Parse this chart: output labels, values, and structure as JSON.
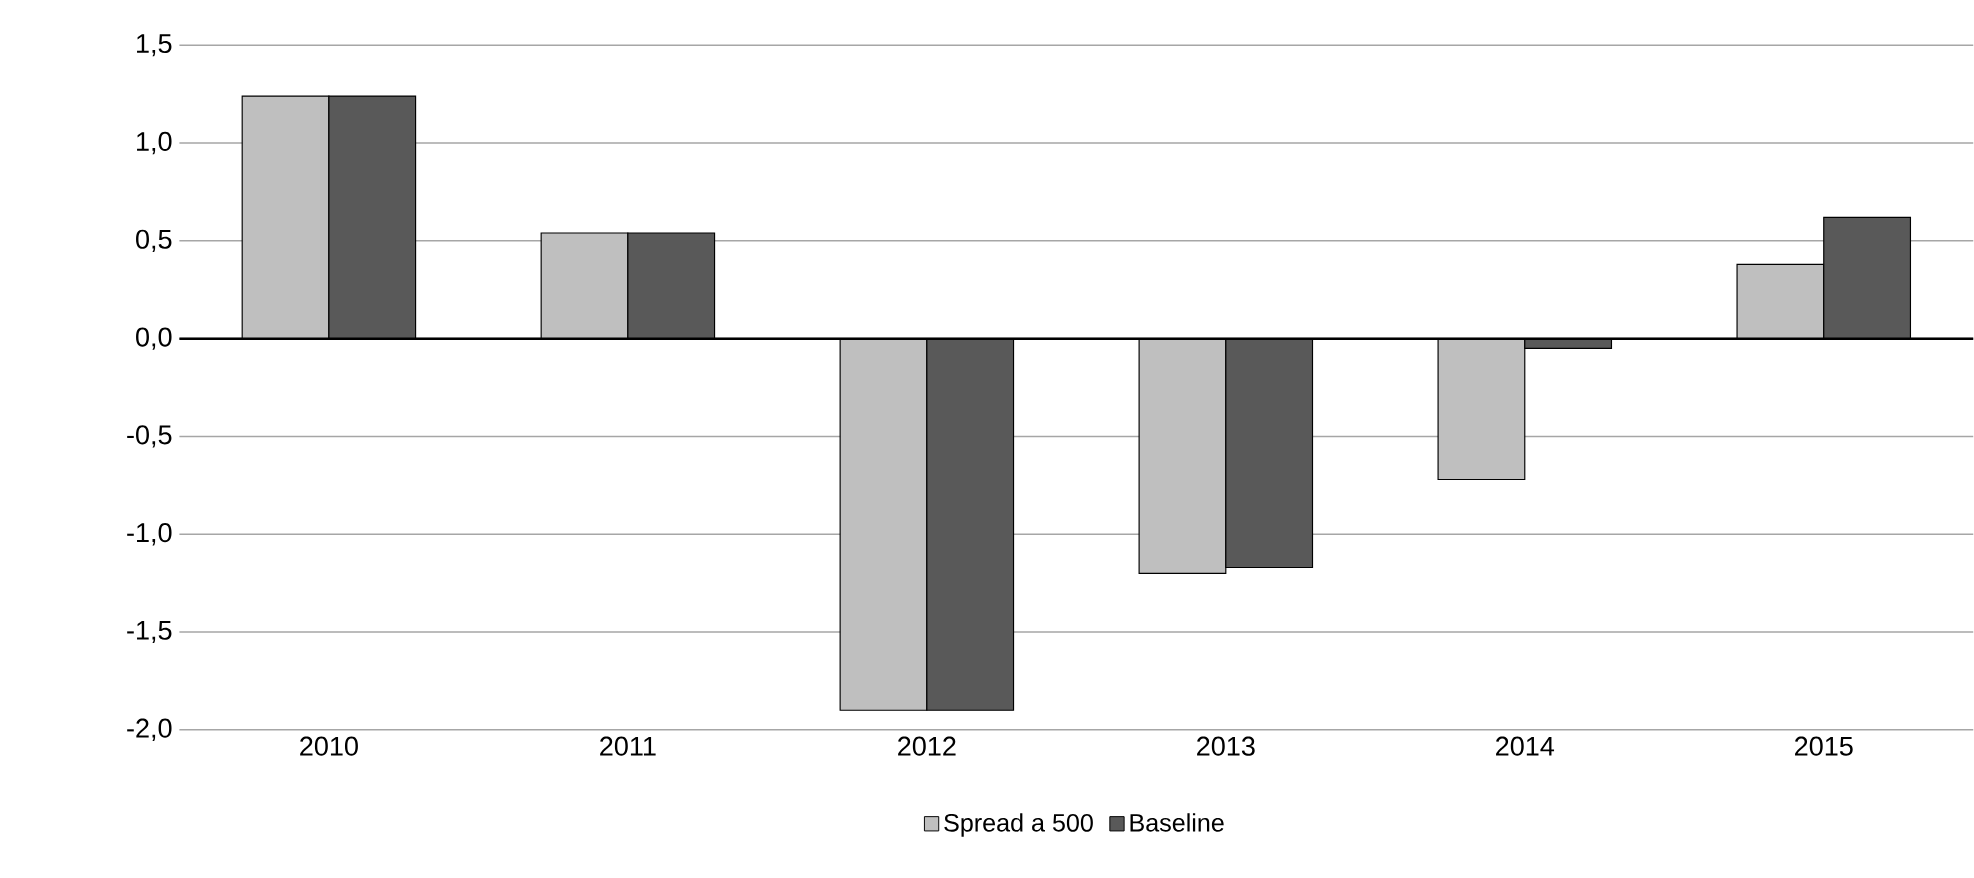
{
  "chart_data": {
    "type": "bar",
    "categories": [
      "2010",
      "2011",
      "2012",
      "2013",
      "2014",
      "2015"
    ],
    "series": [
      {
        "name": "Spread a 500",
        "color": "#bfbfbf",
        "values": [
          1.24,
          0.54,
          -1.9,
          -1.2,
          -0.72,
          0.38
        ]
      },
      {
        "name": "Baseline",
        "color": "#595959",
        "values": [
          1.24,
          0.54,
          -1.9,
          -1.17,
          -0.05,
          0.62
        ]
      }
    ],
    "ylim": [
      -2.0,
      1.5
    ],
    "yticks": [
      {
        "value": -2.0,
        "label": "-2,0"
      },
      {
        "value": -1.5,
        "label": "-1,5"
      },
      {
        "value": -1.0,
        "label": "-1,0"
      },
      {
        "value": -0.5,
        "label": "-0,5"
      },
      {
        "value": 0.0,
        "label": "0,0"
      },
      {
        "value": 0.5,
        "label": "0,5"
      },
      {
        "value": 1.0,
        "label": "1,0"
      },
      {
        "value": 1.5,
        "label": "1,5"
      }
    ],
    "grid": "y",
    "legend": "bottom"
  }
}
